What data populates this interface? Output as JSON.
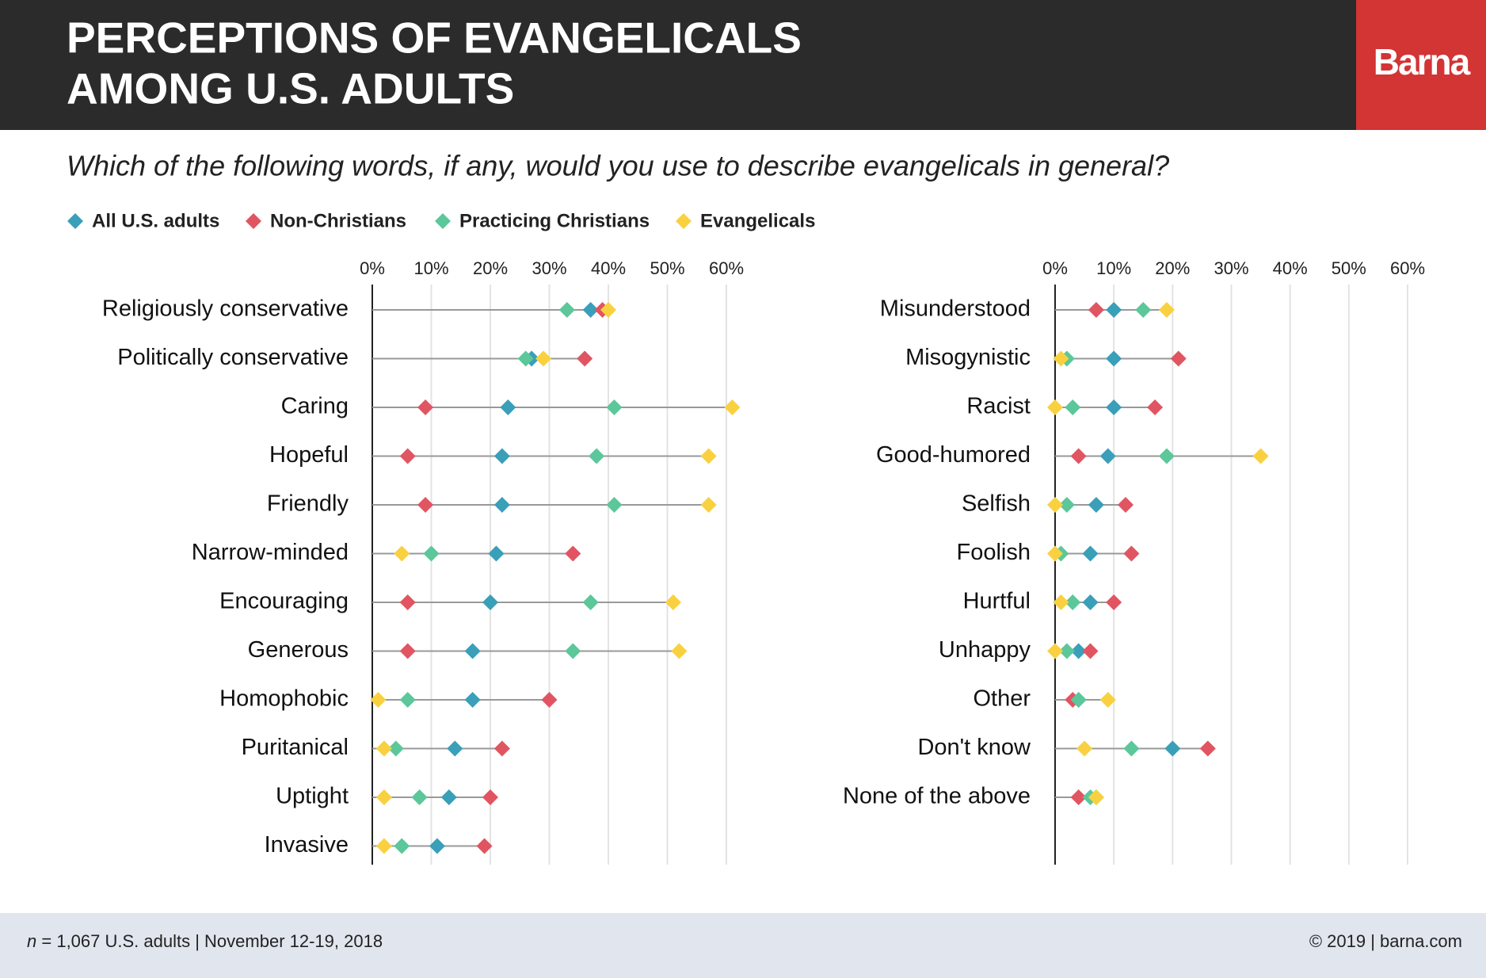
{
  "header": {
    "title_lines": [
      "PERCEPTIONS OF EVANGELICALS",
      "AMONG U.S. ADULTS"
    ],
    "logo": "Barna"
  },
  "subtitle": "Which of the following words, if any, would you use to describe evangelicals in general?",
  "chart_data": [
    {
      "type": "dot",
      "categories": [
        "Religiously conservative",
        "Politically conservative",
        "Caring",
        "Hopeful",
        "Friendly",
        "Narrow-minded",
        "Encouraging",
        "Generous",
        "Homophobic",
        "Puritanical",
        "Uptight",
        "Invasive"
      ],
      "series": [
        {
          "name": "All U.S. adults",
          "color": "#3a9fb8",
          "values": [
            37,
            27,
            23,
            22,
            22,
            21,
            20,
            17,
            17,
            14,
            13,
            11
          ]
        },
        {
          "name": "Non-Christians",
          "color": "#e05561",
          "values": [
            39,
            36,
            9,
            6,
            9,
            34,
            6,
            6,
            30,
            22,
            20,
            19
          ]
        },
        {
          "name": "Practicing Christians",
          "color": "#5cc79a",
          "values": [
            33,
            26,
            41,
            38,
            41,
            10,
            37,
            34,
            6,
            4,
            8,
            5
          ]
        },
        {
          "name": "Evangelicals",
          "color": "#f9d140",
          "values": [
            40,
            29,
            61,
            57,
            57,
            5,
            51,
            52,
            1,
            2,
            2,
            2
          ]
        }
      ],
      "xlim": [
        0,
        60
      ],
      "xticks": [
        {
          "value": 0,
          "label": "0%"
        },
        {
          "value": 10,
          "label": "10%"
        },
        {
          "value": 20,
          "label": "20%"
        },
        {
          "value": 30,
          "label": "30%"
        },
        {
          "value": 40,
          "label": "40%"
        },
        {
          "value": 50,
          "label": "50%"
        },
        {
          "value": 60,
          "label": "60%"
        }
      ],
      "grid": true
    },
    {
      "type": "dot",
      "categories": [
        "Misunderstood",
        "Misogynistic",
        "Racist",
        "Good-humored",
        "Selfish",
        "Foolish",
        "Hurtful",
        "Unhappy",
        "Other",
        "Don't know",
        "None of the above"
      ],
      "series": [
        {
          "color": "#3a9fb8",
          "values": [
            10,
            10,
            10,
            9,
            7,
            6,
            6,
            4,
            4,
            20,
            7
          ]
        },
        {
          "color": "#e05561",
          "values": [
            7,
            21,
            17,
            4,
            12,
            13,
            10,
            6,
            3,
            26,
            4
          ]
        },
        {
          "color": "#5cc79a",
          "values": [
            15,
            2,
            3,
            19,
            2,
            1,
            3,
            2,
            4,
            13,
            6
          ]
        },
        {
          "color": "#f9d140",
          "values": [
            19,
            1,
            0,
            35,
            0,
            0,
            1,
            0,
            9,
            5,
            7
          ]
        }
      ],
      "xlim": [
        0,
        60
      ],
      "xticks": [
        {
          "value": 0,
          "label": "0%"
        },
        {
          "value": 10,
          "label": "10%"
        },
        {
          "value": 20,
          "label": "20%"
        },
        {
          "value": 30,
          "label": "30%"
        },
        {
          "value": 40,
          "label": "40%"
        },
        {
          "value": 50,
          "label": "50%"
        },
        {
          "value": 60,
          "label": "60%"
        }
      ],
      "grid": true
    }
  ],
  "footer": {
    "sample_symbol": "n",
    "note": "= 1,067 U.S. adults | November 12-19, 2018",
    "credit": "© 2019 | barna.com"
  }
}
